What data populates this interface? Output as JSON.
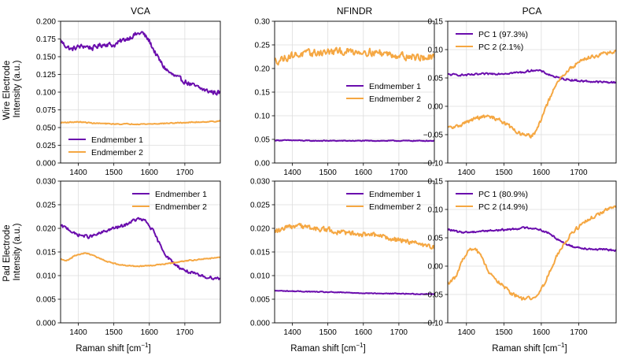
{
  "figure": {
    "xlabel_text": "Raman shift [cm",
    "xlabel_sup": "−1",
    "xlabel_close": "]",
    "row_labels": [
      [
        "Wire Electrode",
        "Intensity (a.u.)"
      ],
      [
        "Pad Electrode",
        "Intensity (a.u.)"
      ]
    ],
    "column_titles": [
      "VCA",
      "NFINDR",
      "PCA"
    ]
  },
  "colors": {
    "purple": "#6a0dad",
    "orange": "#f5a742",
    "grid": "#dddddd"
  },
  "chart_data": [
    {
      "type": "line",
      "id": "wire-vca",
      "title": "VCA",
      "xlim": [
        1350,
        1800
      ],
      "ylim": [
        0,
        0.2
      ],
      "xticks": [
        "1400",
        "1500",
        "1600",
        "1700"
      ],
      "yticks": [
        "0.000",
        "0.025",
        "0.050",
        "0.075",
        "0.100",
        "0.125",
        "0.150",
        "0.175",
        "0.200"
      ],
      "legend_position": "lower-left",
      "series": [
        {
          "name": "Endmember 1",
          "color": "purple",
          "noise": 0.003,
          "x": [
            1350,
            1360,
            1380,
            1400,
            1420,
            1440,
            1460,
            1480,
            1500,
            1520,
            1540,
            1560,
            1580,
            1600,
            1620,
            1640,
            1660,
            1680,
            1700,
            1720,
            1740,
            1760,
            1780,
            1800
          ],
          "y": [
            0.173,
            0.167,
            0.16,
            0.164,
            0.165,
            0.162,
            0.166,
            0.168,
            0.166,
            0.172,
            0.176,
            0.181,
            0.184,
            0.172,
            0.152,
            0.136,
            0.126,
            0.12,
            0.115,
            0.11,
            0.106,
            0.102,
            0.1,
            0.099
          ]
        },
        {
          "name": "Endmember 2",
          "color": "orange",
          "noise": 0.0006,
          "x": [
            1350,
            1400,
            1450,
            1500,
            1550,
            1600,
            1650,
            1700,
            1750,
            1800
          ],
          "y": [
            0.057,
            0.058,
            0.056,
            0.055,
            0.055,
            0.055,
            0.056,
            0.057,
            0.058,
            0.059
          ]
        }
      ]
    },
    {
      "type": "line",
      "id": "wire-nfindr",
      "title": "NFINDR",
      "xlim": [
        1350,
        1800
      ],
      "ylim": [
        0,
        0.3
      ],
      "xticks": [
        "1400",
        "1500",
        "1600",
        "1700"
      ],
      "yticks": [
        "0.00",
        "0.05",
        "0.10",
        "0.15",
        "0.20",
        "0.25",
        "0.30"
      ],
      "legend_position": "center-right",
      "series": [
        {
          "name": "Endmember 1",
          "color": "purple",
          "noise": 0.0008,
          "x": [
            1350,
            1400,
            1450,
            1500,
            1550,
            1600,
            1650,
            1700,
            1750,
            1800
          ],
          "y": [
            0.048,
            0.048,
            0.047,
            0.047,
            0.047,
            0.047,
            0.047,
            0.047,
            0.047,
            0.047
          ]
        },
        {
          "name": "Endmember 2",
          "color": "orange",
          "noise": 0.007,
          "x": [
            1350,
            1400,
            1450,
            1500,
            1550,
            1600,
            1650,
            1700,
            1750,
            1800
          ],
          "y": [
            0.215,
            0.228,
            0.232,
            0.235,
            0.236,
            0.236,
            0.233,
            0.228,
            0.224,
            0.222
          ]
        }
      ]
    },
    {
      "type": "line",
      "id": "wire-pca",
      "title": "PCA",
      "xlim": [
        1350,
        1800
      ],
      "ylim": [
        -0.1,
        0.15
      ],
      "xticks": [
        "1400",
        "1500",
        "1600",
        "1700"
      ],
      "yticks": [
        "−0.10",
        "−0.05",
        "0.00",
        "0.05",
        "0.10",
        "0.15"
      ],
      "legend_position": "top-left",
      "series": [
        {
          "name": "PC 1 (97.3%)",
          "color": "purple",
          "noise": 0.0015,
          "x": [
            1350,
            1400,
            1450,
            1500,
            1550,
            1580,
            1600,
            1620,
            1650,
            1700,
            1750,
            1800
          ],
          "y": [
            0.056,
            0.055,
            0.057,
            0.058,
            0.06,
            0.064,
            0.062,
            0.056,
            0.049,
            0.045,
            0.043,
            0.042
          ]
        },
        {
          "name": "PC 2 (2.1%)",
          "color": "orange",
          "noise": 0.003,
          "x": [
            1350,
            1370,
            1400,
            1430,
            1460,
            1490,
            1520,
            1550,
            1575,
            1590,
            1610,
            1630,
            1650,
            1680,
            1700,
            1720,
            1750,
            1780,
            1800
          ],
          "y": [
            -0.038,
            -0.037,
            -0.028,
            -0.02,
            -0.018,
            -0.024,
            -0.038,
            -0.051,
            -0.052,
            -0.04,
            -0.005,
            0.025,
            0.048,
            0.068,
            0.078,
            0.085,
            0.09,
            0.094,
            0.096
          ]
        }
      ]
    },
    {
      "type": "line",
      "id": "pad-vca",
      "title": "",
      "xlim": [
        1350,
        1800
      ],
      "ylim": [
        0,
        0.03
      ],
      "xticks": [
        "1400",
        "1500",
        "1600",
        "1700"
      ],
      "yticks": [
        "0.000",
        "0.005",
        "0.010",
        "0.015",
        "0.020",
        "0.025",
        "0.030"
      ],
      "legend_position": "top-right",
      "series": [
        {
          "name": "Endmember 1",
          "color": "purple",
          "noise": 0.0003,
          "x": [
            1350,
            1370,
            1390,
            1410,
            1430,
            1450,
            1470,
            1490,
            1510,
            1530,
            1550,
            1570,
            1590,
            1610,
            1630,
            1650,
            1670,
            1690,
            1710,
            1740,
            1770,
            1800
          ],
          "y": [
            0.0205,
            0.02,
            0.0188,
            0.0185,
            0.0182,
            0.0186,
            0.0192,
            0.0198,
            0.0202,
            0.0206,
            0.0215,
            0.022,
            0.0215,
            0.0195,
            0.0165,
            0.014,
            0.0125,
            0.0115,
            0.0108,
            0.01,
            0.0096,
            0.0094
          ]
        },
        {
          "name": "Endmember 2",
          "color": "orange",
          "noise": 0.0001,
          "x": [
            1350,
            1370,
            1390,
            1420,
            1450,
            1480,
            1510,
            1540,
            1570,
            1600,
            1650,
            1700,
            1750,
            1800
          ],
          "y": [
            0.0135,
            0.0132,
            0.0142,
            0.0148,
            0.014,
            0.013,
            0.0124,
            0.0121,
            0.012,
            0.0121,
            0.0125,
            0.0131,
            0.0135,
            0.0138
          ]
        }
      ]
    },
    {
      "type": "line",
      "id": "pad-nfindr",
      "title": "",
      "xlim": [
        1350,
        1800
      ],
      "ylim": [
        0,
        0.03
      ],
      "xticks": [
        "1400",
        "1500",
        "1600",
        "1700"
      ],
      "yticks": [
        "0.000",
        "0.005",
        "0.010",
        "0.015",
        "0.020",
        "0.025",
        "0.030"
      ],
      "legend_position": "top-right",
      "series": [
        {
          "name": "Endmember 1",
          "color": "purple",
          "noise": 8e-05,
          "x": [
            1350,
            1400,
            1450,
            1500,
            1550,
            1600,
            1650,
            1700,
            1750,
            1800
          ],
          "y": [
            0.0068,
            0.0067,
            0.0066,
            0.0065,
            0.0064,
            0.0063,
            0.0062,
            0.0062,
            0.0061,
            0.0061
          ]
        },
        {
          "name": "Endmember 2",
          "color": "orange",
          "noise": 0.0005,
          "x": [
            1350,
            1380,
            1410,
            1440,
            1470,
            1500,
            1530,
            1560,
            1590,
            1620,
            1650,
            1680,
            1710,
            1740,
            1770,
            1800
          ],
          "y": [
            0.0193,
            0.02,
            0.0205,
            0.0203,
            0.0199,
            0.0197,
            0.0192,
            0.019,
            0.0188,
            0.0186,
            0.0182,
            0.0178,
            0.0174,
            0.017,
            0.0165,
            0.016
          ]
        }
      ]
    },
    {
      "type": "line",
      "id": "pad-pca",
      "title": "",
      "xlim": [
        1350,
        1800
      ],
      "ylim": [
        -0.1,
        0.15
      ],
      "xticks": [
        "1400",
        "1500",
        "1600",
        "1700"
      ],
      "yticks": [
        "−0.10",
        "−0.05",
        "0.00",
        "0.05",
        "0.10",
        "0.15"
      ],
      "legend_position": "top-left",
      "series": [
        {
          "name": "PC 1 (80.9%)",
          "color": "purple",
          "noise": 0.0015,
          "x": [
            1350,
            1380,
            1410,
            1440,
            1470,
            1500,
            1530,
            1560,
            1590,
            1620,
            1650,
            1680,
            1710,
            1740,
            1770,
            1800
          ],
          "y": [
            0.065,
            0.06,
            0.06,
            0.062,
            0.063,
            0.064,
            0.066,
            0.068,
            0.066,
            0.058,
            0.045,
            0.035,
            0.032,
            0.03,
            0.029,
            0.028
          ]
        },
        {
          "name": "PC 2 (14.9%)",
          "color": "orange",
          "noise": 0.003,
          "x": [
            1350,
            1370,
            1390,
            1410,
            1425,
            1440,
            1460,
            1490,
            1520,
            1550,
            1570,
            1590,
            1605,
            1625,
            1650,
            1680,
            1710,
            1740,
            1770,
            1800
          ],
          "y": [
            -0.03,
            -0.02,
            0.01,
            0.03,
            0.03,
            0.015,
            -0.01,
            -0.03,
            -0.048,
            -0.058,
            -0.057,
            -0.05,
            -0.035,
            -0.005,
            0.03,
            0.058,
            0.075,
            0.088,
            0.098,
            0.104
          ]
        }
      ]
    }
  ]
}
